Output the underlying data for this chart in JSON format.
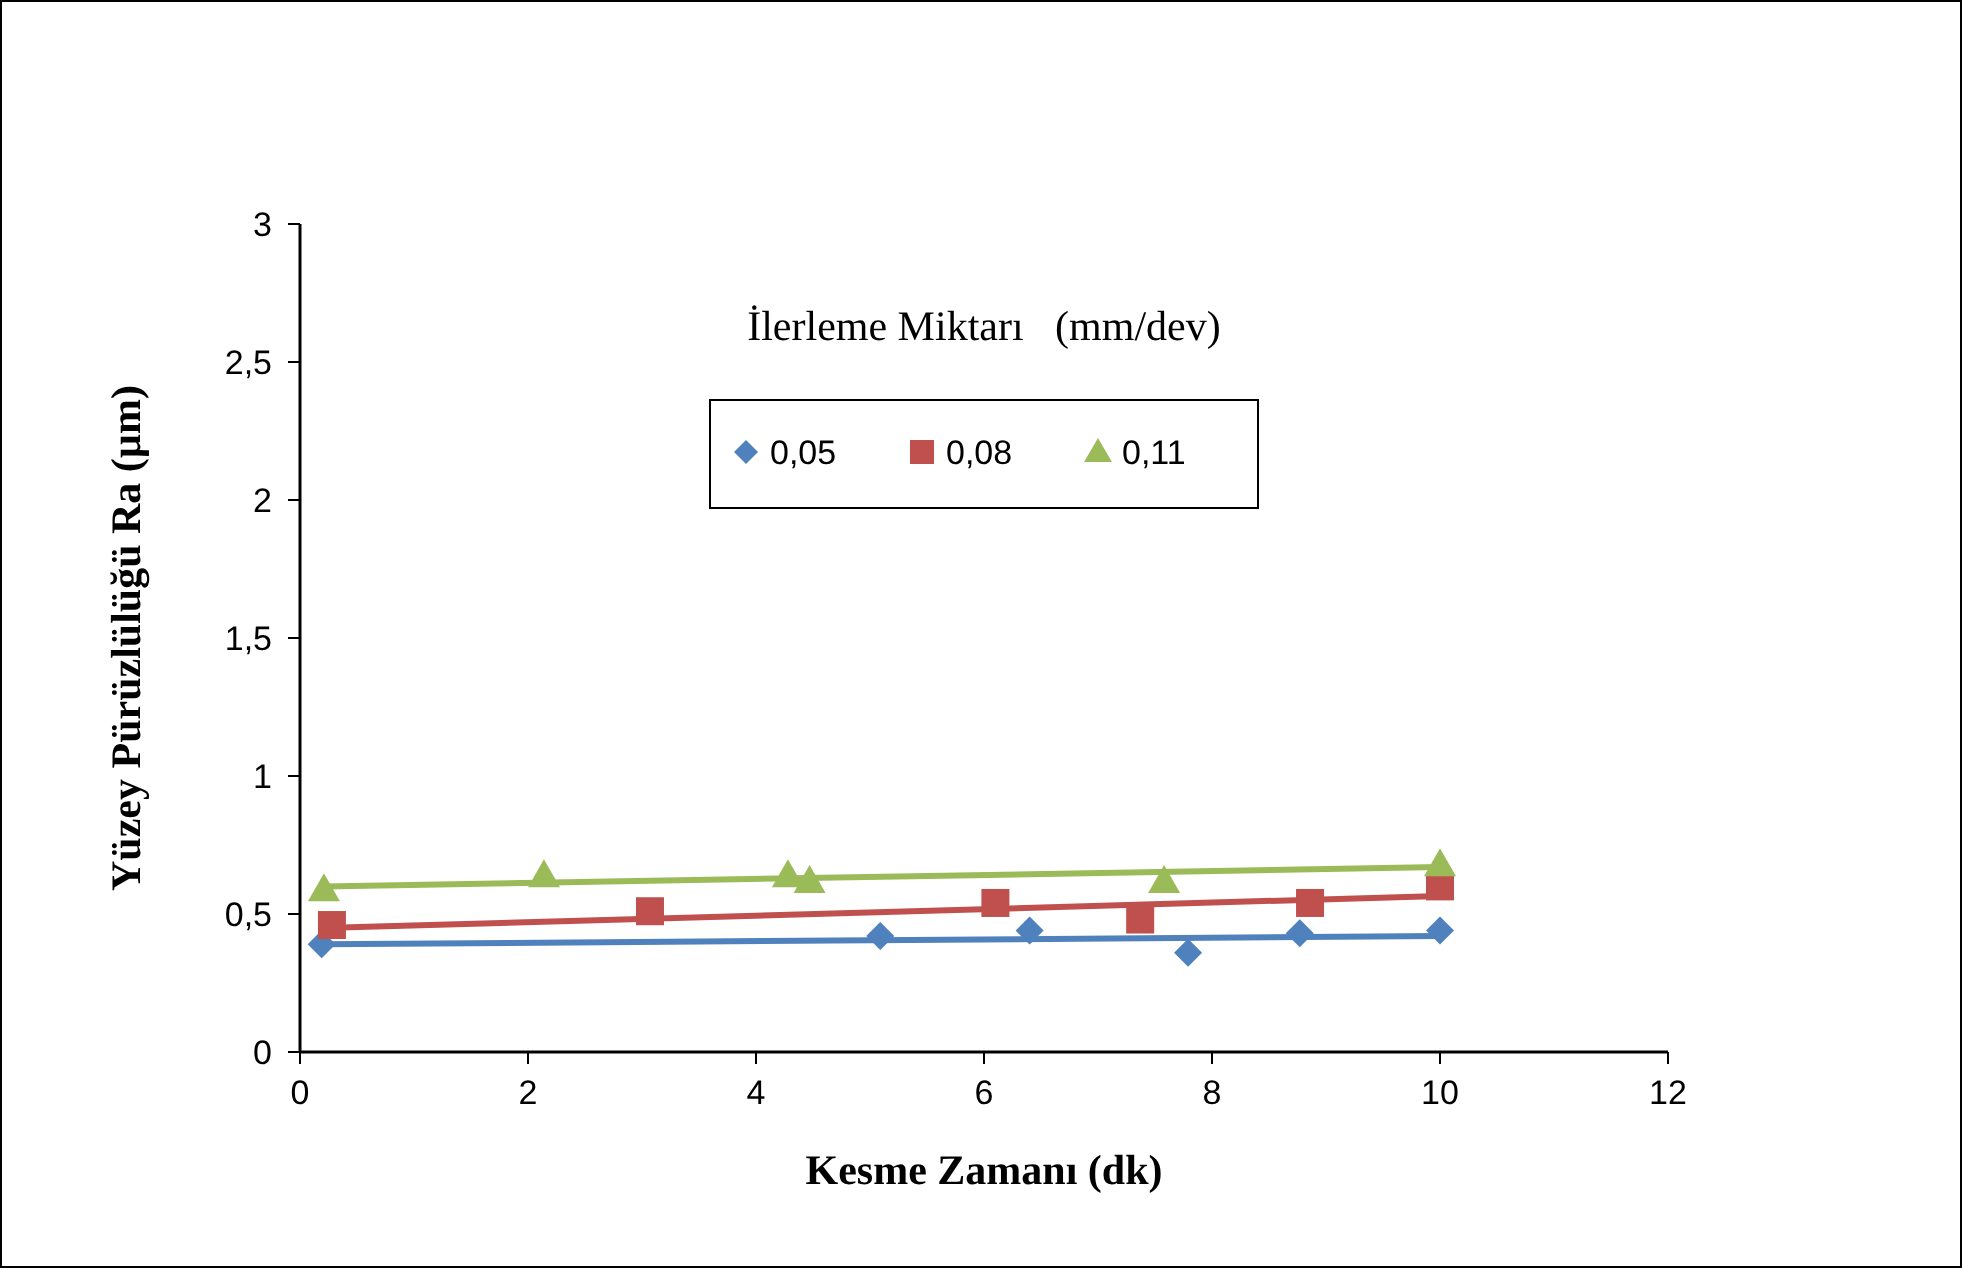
{
  "chart_data": {
    "type": "scatter",
    "xlabel": "Kesme Zamanı (dk)",
    "ylabel": "Yüzey Pürüzlülüğü Ra (µm)",
    "legend_title": "İlerleme Miktarı   (mm/dev)",
    "legend": "top",
    "xlim": [
      0,
      12
    ],
    "xticks": [
      0,
      2,
      4,
      6,
      8,
      10,
      12
    ],
    "ylim": [
      0,
      3
    ],
    "yticks": [
      0,
      {
        "value": 0.5,
        "label": "0,5"
      },
      1,
      {
        "value": 1.5,
        "label": "1,5"
      },
      2,
      {
        "value": 2.5,
        "label": "2,5"
      },
      3
    ],
    "grid": false,
    "series": [
      {
        "name": "0,05",
        "color": "#4f81bd",
        "marker": "diamond",
        "x": [
          0.19,
          5.09,
          6.4,
          7.79,
          8.77,
          10
        ],
        "values": [
          0.39,
          0.42,
          0.44,
          0.36,
          0.43,
          0.44
        ]
      },
      {
        "name": "0,08",
        "color": "#c0504d",
        "marker": "square",
        "x": [
          0.28,
          3.07,
          6.1,
          7.37,
          8.86,
          10
        ],
        "values": [
          0.46,
          0.51,
          0.54,
          0.48,
          0.54,
          0.6
        ]
      },
      {
        "name": "0,11",
        "color": "#9bbb59",
        "marker": "triangle",
        "x": [
          0.21,
          2.14,
          4.28,
          4.47,
          7.58,
          10
        ],
        "values": [
          0.59,
          0.64,
          0.64,
          0.62,
          0.62,
          0.68
        ]
      },
      {
        "type": "line",
        "marker": "none",
        "color": "#4f81bd",
        "x": [
          0.19,
          10
        ],
        "values": [
          0.39,
          0.42
        ]
      },
      {
        "type": "line",
        "marker": "none",
        "color": "#c0504d",
        "x": [
          0.28,
          10
        ],
        "values": [
          0.45,
          0.565
        ]
      },
      {
        "type": "line",
        "marker": "none",
        "color": "#9bbb59",
        "x": [
          0.21,
          10
        ],
        "values": [
          0.6,
          0.67
        ]
      }
    ]
  }
}
